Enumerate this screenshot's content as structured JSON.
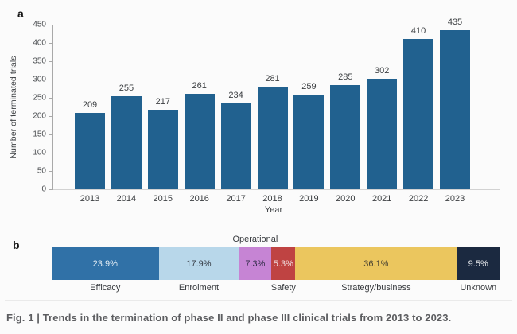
{
  "figure": {
    "panel_a_letter": "a",
    "panel_b_letter": "b",
    "caption": "Fig. 1 | Trends in the termination of phase II and phase III clinical trials from 2013 to 2023."
  },
  "chart_data": [
    {
      "type": "bar",
      "title": "",
      "categories": [
        "2013",
        "2014",
        "2015",
        "2016",
        "2017",
        "2018",
        "2019",
        "2020",
        "2021",
        "2022",
        "2023"
      ],
      "values": [
        209,
        255,
        217,
        261,
        234,
        281,
        259,
        285,
        302,
        410,
        435
      ],
      "xlabel": "Year",
      "ylabel": "Number of terminated trials",
      "ylim": [
        0,
        450
      ],
      "yticks": [
        0,
        50,
        100,
        150,
        200,
        250,
        300,
        350,
        400,
        450
      ],
      "grid": false,
      "legend": "none",
      "bar_color": "#21618f",
      "value_labels_shown": true
    },
    {
      "type": "stacked-bar",
      "orientation": "horizontal",
      "unit": "%",
      "segments": [
        {
          "label": "Efficacy",
          "value": 23.9,
          "text": "23.9%",
          "color": "#3071a7",
          "text_color": "#e4edf4",
          "label_position": "below"
        },
        {
          "label": "Enrolment",
          "value": 17.9,
          "text": "17.9%",
          "color": "#b8d7ea",
          "text_color": "#363c45",
          "label_position": "below"
        },
        {
          "label": "Operational",
          "value": 7.3,
          "text": "7.3%",
          "color": "#c684d4",
          "text_color": "#332d4a",
          "label_position": "above"
        },
        {
          "label": "Safety",
          "value": 5.3,
          "text": "5.3%",
          "color": "#bf4342",
          "text_color": "#efdadb",
          "label_position": "below"
        },
        {
          "label": "Strategy/business",
          "value": 36.1,
          "text": "36.1%",
          "color": "#ebc65e",
          "text_color": "#4c4533",
          "label_position": "below"
        },
        {
          "label": "Unknown",
          "value": 9.5,
          "text": "9.5%",
          "color": "#1b2940",
          "text_color": "#e9ebee",
          "label_position": "below"
        }
      ]
    }
  ]
}
